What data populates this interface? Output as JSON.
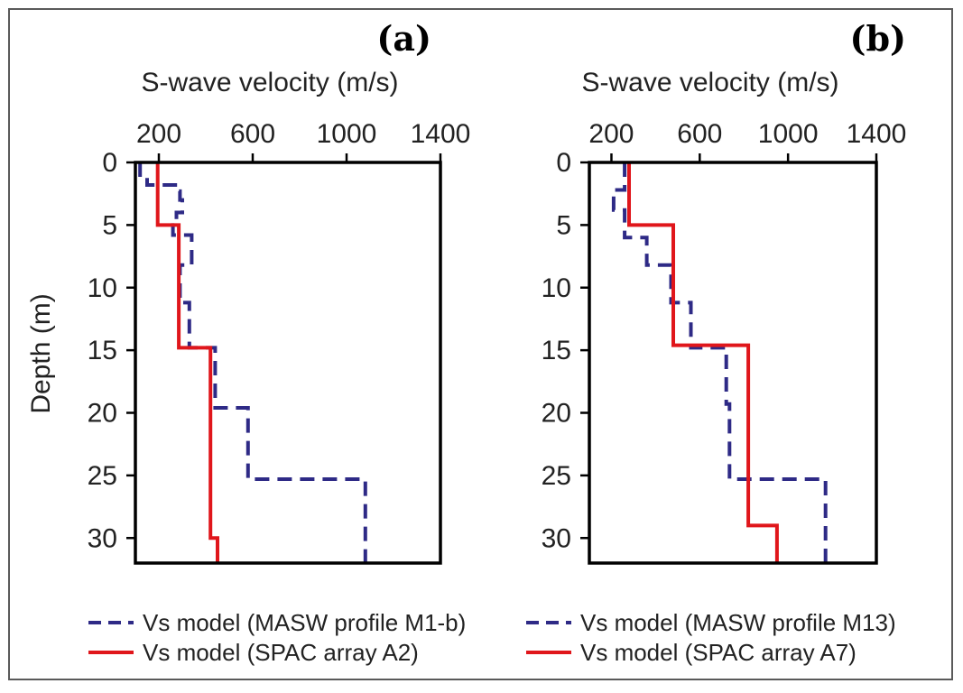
{
  "chart_data": [
    {
      "type": "line",
      "panel_label": "(a)",
      "title": "",
      "xlabel": "S-wave velocity (m/s)",
      "ylabel": "Depth (m)",
      "x_axis_position": "top",
      "y_inverted": true,
      "xlim": [
        100,
        1400
      ],
      "ylim": [
        0,
        32
      ],
      "xticks": [
        200,
        600,
        1000,
        1400
      ],
      "xtick_labels": [
        "200",
        "600",
        "1000",
        "1400"
      ],
      "yticks": [
        0,
        5,
        10,
        15,
        20,
        25,
        30
      ],
      "ytick_labels": [
        "0",
        "5",
        "10",
        "15",
        "20",
        "25",
        "30"
      ],
      "legend_position": "bottom",
      "series": [
        {
          "name": "Vs model (MASW profile M1-b)",
          "style": "dashed",
          "color": "#2e2a86",
          "points": [
            [
              120,
              0
            ],
            [
              120,
              1.2
            ],
            [
              150,
              1.2
            ],
            [
              150,
              1.8
            ],
            [
              270,
              1.8
            ],
            [
              270,
              2.3
            ],
            [
              290,
              2.3
            ],
            [
              290,
              3.0
            ],
            [
              300,
              3.0
            ],
            [
              300,
              4.0
            ],
            [
              275,
              4.0
            ],
            [
              275,
              5.0
            ],
            [
              260,
              5.0
            ],
            [
              260,
              5.8
            ],
            [
              340,
              5.8
            ],
            [
              340,
              8.2
            ],
            [
              290,
              8.2
            ],
            [
              290,
              11.2
            ],
            [
              330,
              11.2
            ],
            [
              330,
              14.8
            ],
            [
              440,
              14.8
            ],
            [
              440,
              19.6
            ],
            [
              580,
              19.6
            ],
            [
              580,
              25.3
            ],
            [
              1080,
              25.3
            ],
            [
              1080,
              32
            ]
          ]
        },
        {
          "name": "Vs model (SPAC array A2)",
          "style": "solid",
          "color": "#e0161b",
          "points": [
            [
              195,
              0
            ],
            [
              195,
              5.0
            ],
            [
              285,
              5.0
            ],
            [
              285,
              14.8
            ],
            [
              420,
              14.8
            ],
            [
              420,
              30.0
            ],
            [
              450,
              30.0
            ],
            [
              450,
              32
            ]
          ]
        }
      ]
    },
    {
      "type": "line",
      "panel_label": "(b)",
      "title": "",
      "xlabel": "S-wave velocity (m/s)",
      "ylabel": "",
      "x_axis_position": "top",
      "y_inverted": true,
      "xlim": [
        100,
        1400
      ],
      "ylim": [
        0,
        32
      ],
      "xticks": [
        200,
        600,
        1000,
        1400
      ],
      "xtick_labels": [
        "200",
        "600",
        "1000",
        "1400"
      ],
      "yticks": [
        0,
        5,
        10,
        15,
        20,
        25,
        30
      ],
      "ytick_labels": [
        "0",
        "5",
        "10",
        "15",
        "20",
        "25",
        "30"
      ],
      "legend_position": "bottom",
      "series": [
        {
          "name": "Vs model (MASW profile M13)",
          "style": "dashed",
          "color": "#2e2a86",
          "points": [
            [
              260,
              0
            ],
            [
              260,
              2.2
            ],
            [
              210,
              2.2
            ],
            [
              210,
              3.8
            ],
            [
              260,
              3.8
            ],
            [
              260,
              6.0
            ],
            [
              360,
              6.0
            ],
            [
              360,
              8.2
            ],
            [
              470,
              8.2
            ],
            [
              470,
              11.2
            ],
            [
              560,
              11.2
            ],
            [
              560,
              14.8
            ],
            [
              720,
              14.8
            ],
            [
              720,
              19.3
            ],
            [
              735,
              19.3
            ],
            [
              735,
              25.3
            ],
            [
              1170,
              25.3
            ],
            [
              1170,
              32
            ]
          ]
        },
        {
          "name": "Vs model (SPAC array A7)",
          "style": "solid",
          "color": "#e0161b",
          "points": [
            [
              280,
              0
            ],
            [
              280,
              5.0
            ],
            [
              480,
              5.0
            ],
            [
              480,
              14.6
            ],
            [
              820,
              14.6
            ],
            [
              820,
              29.0
            ],
            [
              950,
              29.0
            ],
            [
              950,
              32
            ]
          ]
        }
      ]
    }
  ]
}
